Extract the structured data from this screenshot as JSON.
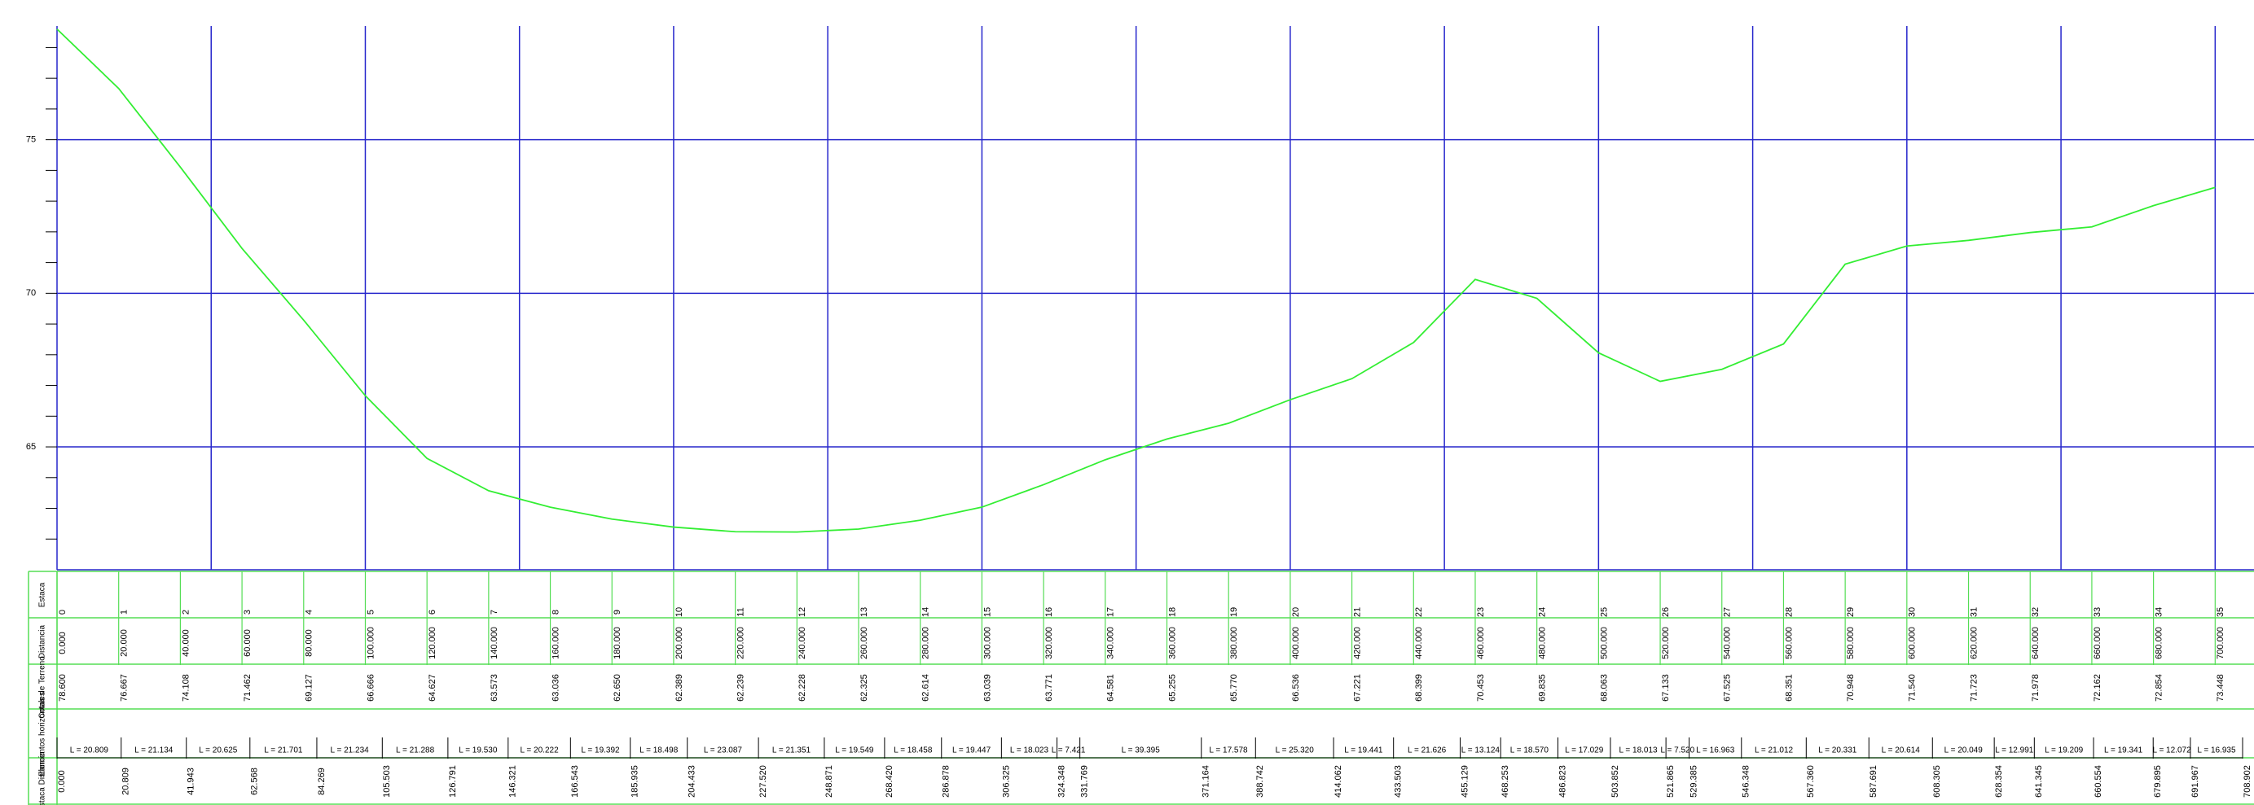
{
  "chart_data": {
    "type": "line",
    "x": [
      0,
      20,
      40,
      60,
      80,
      100,
      120,
      140,
      160,
      180,
      200,
      220,
      240,
      260,
      280,
      300,
      320,
      340,
      360,
      380,
      400,
      420,
      440,
      460,
      480,
      500,
      520,
      540,
      560,
      580,
      600,
      620,
      640,
      660,
      680,
      700
    ],
    "x_labels": [
      "0.000",
      "20.000",
      "40.000",
      "60.000",
      "80.000",
      "100.000",
      "120.000",
      "140.000",
      "160.000",
      "180.000",
      "200.000",
      "220.000",
      "240.000",
      "260.000",
      "280.000",
      "300.000",
      "320.000",
      "340.000",
      "360.000",
      "380.000",
      "400.000",
      "420.000",
      "440.000",
      "460.000",
      "480.000",
      "500.000",
      "520.000",
      "540.000",
      "560.000",
      "580.000",
      "600.000",
      "620.000",
      "640.000",
      "660.000",
      "680.000",
      "700.000"
    ],
    "series": [
      {
        "color": "#33ee33",
        "values": [
          78.6,
          76.667,
          74.108,
          71.462,
          69.127,
          66.666,
          64.627,
          63.573,
          63.036,
          62.65,
          62.389,
          62.239,
          62.228,
          62.325,
          62.614,
          63.039,
          63.771,
          64.581,
          65.255,
          65.77,
          66.536,
          67.221,
          68.399,
          70.453,
          69.835,
          68.063,
          67.133,
          67.525,
          68.351,
          70.948,
          71.54,
          71.723,
          71.978,
          72.162,
          72.854,
          73.448
        ],
        "value_labels": [
          "78.600",
          "76.667",
          "74.108",
          "71.462",
          "69.127",
          "66.666",
          "64.627",
          "63.573",
          "63.036",
          "62.650",
          "62.389",
          "62.239",
          "62.228",
          "62.325",
          "62.614",
          "63.039",
          "63.771",
          "64.581",
          "65.255",
          "65.770",
          "66.536",
          "67.221",
          "68.399",
          "70.453",
          "69.835",
          "68.063",
          "67.133",
          "67.525",
          "68.351",
          "70.948",
          "71.540",
          "71.723",
          "71.978",
          "72.162",
          "72.854",
          "73.448"
        ]
      }
    ],
    "xlim": [
      0,
      712.6
    ],
    "ylim": [
      61,
      78.7
    ],
    "yticks": [
      65,
      70,
      75
    ],
    "yminor_ticks": [
      62,
      63,
      64,
      65,
      66,
      67,
      68,
      69,
      70,
      71,
      72,
      73,
      74,
      75,
      76,
      77,
      78
    ],
    "xgrid": [
      50,
      100,
      150,
      200,
      250,
      300,
      350,
      400,
      450,
      500,
      550,
      600,
      650,
      700
    ],
    "grid": true,
    "grid_color": "#2626cc"
  },
  "guitar": {
    "row_labels": [
      "Estaca",
      "Distancia",
      "Cotas de Terreno",
      "Elementos horizontales",
      "Estaca Distancia"
    ],
    "stations": [
      "0",
      "1",
      "2",
      "3",
      "4",
      "5",
      "6",
      "7",
      "8",
      "9",
      "10",
      "11",
      "12",
      "13",
      "14",
      "15",
      "16",
      "17",
      "18",
      "19",
      "20",
      "21",
      "22",
      "23",
      "24",
      "25",
      "26",
      "27",
      "28",
      "29",
      "30",
      "31",
      "32",
      "33",
      "34",
      "35"
    ],
    "element_lengths": [
      "L = 20.809",
      "L = 21.134",
      "L = 20.625",
      "L = 21.701",
      "L = 21.234",
      "L = 21.288",
      "L = 19.530",
      "L = 20.222",
      "L = 19.392",
      "L = 18.498",
      "L = 23.087",
      "L = 21.351",
      "L = 19.549",
      "L = 18.458",
      "L = 19.447",
      "L = 18.023",
      "L = 7.421",
      "L = 39.395",
      "L = 17.578",
      "L = 25.320",
      "L = 19.441",
      "L = 21.626",
      "L = 13.124",
      "L = 18.570",
      "L = 17.029",
      "L = 18.013",
      "L = 7.520",
      "L = 16.963",
      "L = 21.012",
      "L = 20.331",
      "L = 20.614",
      "L = 20.049",
      "L = 12.991",
      "L = 19.209",
      "L = 19.341",
      "L = 12.072",
      "L = 16.935"
    ],
    "vertices": [
      {
        "value": 0,
        "label": "0.000"
      },
      20.809,
      41.943,
      62.568,
      84.269,
      105.503,
      126.791,
      146.321,
      166.543,
      185.935,
      204.433,
      {
        "value": 227.52,
        "label": "227.520"
      },
      248.871,
      {
        "value": 268.42,
        "label": "268.420"
      },
      286.878,
      306.325,
      324.348,
      331.769,
      371.164,
      388.742,
      414.062,
      433.503,
      455.129,
      468.253,
      486.823,
      503.852,
      521.865,
      529.385,
      546.348,
      {
        "value": 567.36,
        "label": "567.360"
      },
      587.691,
      608.305,
      628.354,
      641.345,
      660.554,
      679.895,
      691.967,
      708.902
    ],
    "line_color": "#55dd55"
  }
}
